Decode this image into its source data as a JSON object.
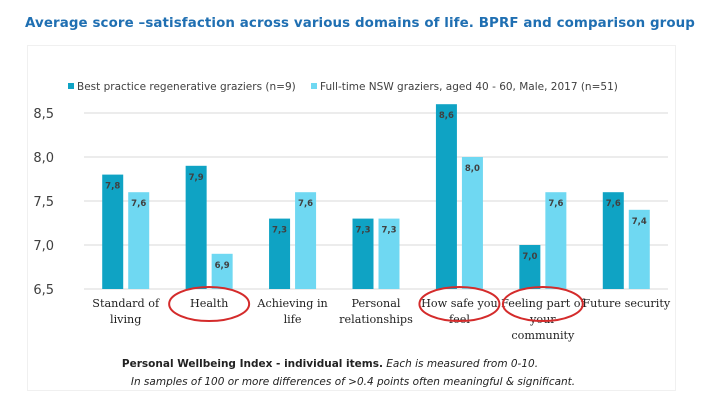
{
  "slide": {
    "title": "Average score –satisfaction across various domains of life. BPRF and comparison group"
  },
  "colors": {
    "series1": "#0fa3c4",
    "series2": "#6fd8f2",
    "title": "#1f6fb2",
    "highlight_circle": "#d42b2b",
    "grid": "#d9d9d9"
  },
  "chart_data": {
    "type": "bar",
    "categories": [
      [
        "Standard of",
        "living"
      ],
      [
        "Health"
      ],
      [
        "Achieving in",
        "life"
      ],
      [
        "Personal",
        "relationships"
      ],
      [
        "How safe you",
        "feel"
      ],
      [
        "Feeling part of",
        "your",
        "community"
      ],
      [
        "Future security"
      ]
    ],
    "series": [
      {
        "name": "Best practice regenerative graziers (n=9)",
        "values": [
          7.8,
          7.9,
          7.3,
          7.3,
          8.6,
          7.0,
          7.6
        ],
        "labels": [
          "7,8",
          "7,9",
          "7,3",
          "7,3",
          "8,6",
          "7,0",
          "7,6"
        ]
      },
      {
        "name": "Full-time NSW graziers, aged 40 - 60, Male, 2017 (n=51)",
        "values": [
          7.6,
          6.9,
          7.6,
          7.3,
          8.0,
          7.6,
          7.4
        ],
        "labels": [
          "7,6",
          "6,9",
          "7,6",
          "7,3",
          "8,0",
          "7,6",
          "7,4"
        ]
      }
    ],
    "ylim": [
      6.5,
      8.5
    ],
    "yticks": [
      6.5,
      7.0,
      7.5,
      8.0,
      8.5
    ],
    "ytick_labels": [
      "6,5",
      "7,0",
      "7,5",
      "8,0",
      "8,5"
    ],
    "grid": true,
    "legend_position": "top",
    "highlighted_categories": [
      1,
      4,
      5
    ],
    "footnote": {
      "bold": "Personal Wellbeing Index - individual items.",
      "italic1": " Each is measured from 0-10.",
      "italic2": "In samples of 100 or more differences of >0.4 points often meaningful & significant."
    }
  }
}
